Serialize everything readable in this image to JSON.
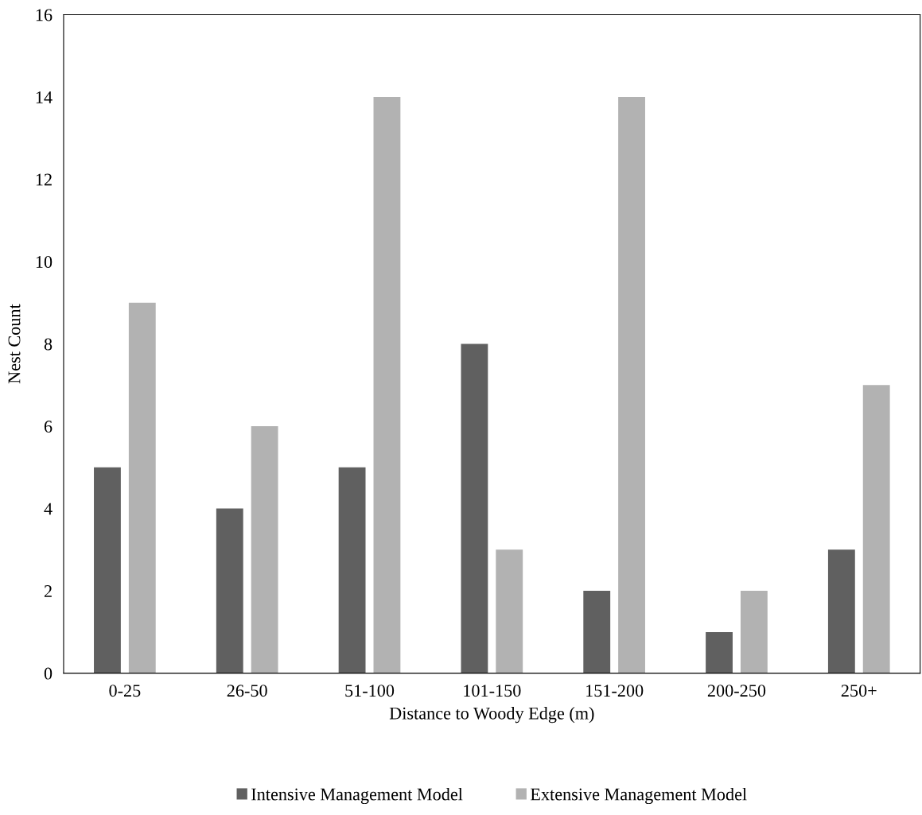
{
  "chart_data": {
    "type": "bar",
    "xlabel": "Distance to Woody Edge (m)",
    "ylabel": "Nest Count",
    "categories": [
      "0-25",
      "26-50",
      "51-100",
      "101-150",
      "151-200",
      "200-250",
      "250+"
    ],
    "series": [
      {
        "name": "Intensive Management Model",
        "color": "#606060",
        "values": [
          5,
          4,
          5,
          8,
          2,
          1,
          3
        ]
      },
      {
        "name": "Extensive Management Model",
        "color": "#b2b2b2",
        "values": [
          9,
          6,
          14,
          3,
          14,
          2,
          7
        ]
      }
    ],
    "ylim": [
      0,
      16
    ],
    "yticks": [
      0,
      2,
      4,
      6,
      8,
      10,
      12,
      14,
      16
    ],
    "grid": false,
    "legend": "bottom"
  }
}
